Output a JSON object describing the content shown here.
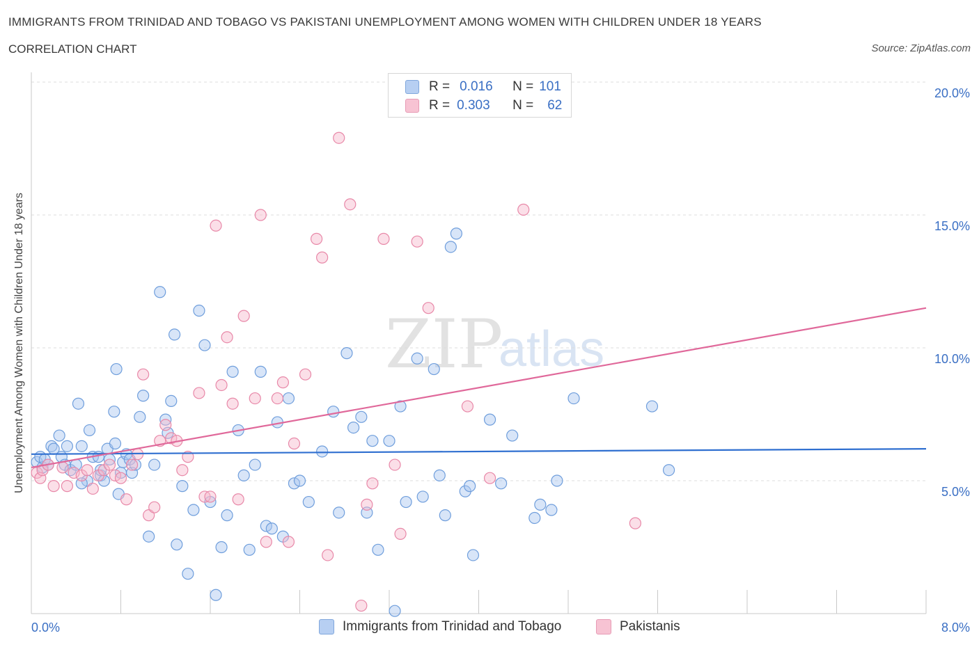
{
  "header": {
    "title": "IMMIGRANTS FROM TRINIDAD AND TOBAGO VS PAKISTANI UNEMPLOYMENT AMONG WOMEN WITH CHILDREN UNDER 18 YEARS",
    "subtitle": "CORRELATION CHART",
    "source": "Source: ZipAtlas.com"
  },
  "watermark": {
    "part1": "ZIP",
    "part2": "atlas"
  },
  "legend": {
    "rows": [
      {
        "r_label": "R =",
        "r_value": "0.016",
        "n_label": "N =",
        "n_value": "101",
        "color": "#b7cff2"
      },
      {
        "r_label": "R =",
        "r_value": "0.303",
        "n_label": "N =",
        "n_value": "62",
        "color": "#f7c3d3"
      }
    ]
  },
  "colors": {
    "blue_fill": "#a9c6ef",
    "blue_stroke": "#6f9edc",
    "blue_line": "#2f6fd0",
    "pink_fill": "#f6b8cb",
    "pink_stroke": "#e888a8",
    "pink_line": "#e0689a",
    "axis_text": "#3a6fc4",
    "grid": "#dcdcdc"
  },
  "chart_data": {
    "type": "scatter",
    "title": "IMMIGRANTS FROM TRINIDAD AND TOBAGO VS PAKISTANI UNEMPLOYMENT AMONG WOMEN WITH CHILDREN UNDER 18 YEARS",
    "ylabel": "Unemployment Among Women with Children Under 18 years",
    "xlim": [
      0,
      8
    ],
    "ylim": [
      0,
      20
    ],
    "x_tick_labels": [
      "0.0%",
      "8.0%"
    ],
    "y_ticks": [
      5,
      10,
      15,
      20
    ],
    "y_tick_labels": [
      "5.0%",
      "10.0%",
      "15.0%",
      "20.0%"
    ],
    "grid": true,
    "series": [
      {
        "name": "Immigrants from Trinidad and Tobago",
        "trend": {
          "x": [
            0,
            8
          ],
          "y": [
            6.0,
            6.2
          ]
        },
        "points": [
          [
            0.05,
            5.7
          ],
          [
            0.08,
            5.9
          ],
          [
            0.1,
            5.5
          ],
          [
            0.12,
            5.8
          ],
          [
            0.15,
            5.6
          ],
          [
            0.18,
            6.3
          ],
          [
            0.2,
            6.2
          ],
          [
            0.25,
            6.7
          ],
          [
            0.27,
            5.9
          ],
          [
            0.3,
            5.6
          ],
          [
            0.32,
            6.3
          ],
          [
            0.35,
            5.4
          ],
          [
            0.4,
            5.6
          ],
          [
            0.42,
            7.9
          ],
          [
            0.45,
            6.3
          ],
          [
            0.5,
            5.0
          ],
          [
            0.52,
            6.9
          ],
          [
            0.55,
            5.9
          ],
          [
            0.6,
            5.9
          ],
          [
            0.62,
            5.2
          ],
          [
            0.65,
            5.0
          ],
          [
            0.68,
            6.2
          ],
          [
            0.7,
            5.8
          ],
          [
            0.75,
            6.4
          ],
          [
            0.78,
            4.5
          ],
          [
            0.8,
            5.3
          ],
          [
            0.82,
            5.7
          ],
          [
            0.85,
            6.0
          ],
          [
            0.88,
            5.8
          ],
          [
            0.9,
            5.3
          ],
          [
            0.93,
            5.6
          ],
          [
            0.74,
            7.6
          ],
          [
            0.76,
            9.2
          ],
          [
            0.97,
            7.4
          ],
          [
            1.0,
            8.2
          ],
          [
            1.1,
            5.6
          ],
          [
            1.15,
            12.1
          ],
          [
            1.2,
            7.3
          ],
          [
            1.22,
            6.8
          ],
          [
            1.25,
            8.0
          ],
          [
            1.28,
            10.5
          ],
          [
            1.3,
            2.6
          ],
          [
            1.35,
            4.8
          ],
          [
            1.4,
            1.5
          ],
          [
            1.45,
            3.9
          ],
          [
            1.5,
            11.4
          ],
          [
            1.55,
            10.1
          ],
          [
            1.6,
            4.2
          ],
          [
            1.65,
            0.7
          ],
          [
            1.7,
            2.5
          ],
          [
            1.75,
            3.7
          ],
          [
            1.8,
            9.1
          ],
          [
            1.85,
            6.9
          ],
          [
            1.9,
            5.2
          ],
          [
            1.95,
            2.4
          ],
          [
            2.0,
            5.6
          ],
          [
            2.05,
            9.1
          ],
          [
            2.1,
            3.3
          ],
          [
            2.15,
            3.2
          ],
          [
            2.2,
            7.2
          ],
          [
            2.3,
            8.1
          ],
          [
            2.35,
            4.9
          ],
          [
            2.4,
            5.0
          ],
          [
            2.48,
            4.2
          ],
          [
            2.6,
            6.1
          ],
          [
            2.7,
            7.6
          ],
          [
            2.75,
            3.8
          ],
          [
            2.82,
            9.8
          ],
          [
            2.88,
            7.0
          ],
          [
            2.95,
            7.4
          ],
          [
            3.0,
            3.8
          ],
          [
            3.05,
            6.5
          ],
          [
            3.1,
            2.4
          ],
          [
            3.2,
            6.5
          ],
          [
            3.25,
            0.1
          ],
          [
            3.3,
            7.8
          ],
          [
            3.35,
            4.2
          ],
          [
            3.45,
            9.6
          ],
          [
            3.5,
            4.4
          ],
          [
            3.6,
            9.2
          ],
          [
            3.65,
            5.2
          ],
          [
            3.7,
            3.7
          ],
          [
            3.75,
            13.8
          ],
          [
            3.8,
            14.3
          ],
          [
            3.88,
            4.6
          ],
          [
            3.95,
            2.2
          ],
          [
            4.1,
            7.3
          ],
          [
            4.2,
            4.9
          ],
          [
            4.3,
            6.7
          ],
          [
            4.55,
            4.1
          ],
          [
            4.65,
            3.9
          ],
          [
            4.7,
            5.0
          ],
          [
            4.85,
            8.1
          ],
          [
            5.55,
            7.8
          ],
          [
            5.7,
            5.4
          ],
          [
            4.5,
            3.6
          ],
          [
            3.92,
            4.8
          ],
          [
            1.05,
            2.9
          ],
          [
            0.45,
            4.9
          ],
          [
            2.25,
            2.9
          ],
          [
            0.62,
            5.4
          ]
        ]
      },
      {
        "name": "Pakistanis",
        "trend": {
          "x": [
            0,
            8
          ],
          "y": [
            5.5,
            11.5
          ]
        },
        "points": [
          [
            0.05,
            5.3
          ],
          [
            0.08,
            5.1
          ],
          [
            0.1,
            5.4
          ],
          [
            0.15,
            5.6
          ],
          [
            0.2,
            4.8
          ],
          [
            0.28,
            5.5
          ],
          [
            0.32,
            4.8
          ],
          [
            0.38,
            5.3
          ],
          [
            0.45,
            5.2
          ],
          [
            0.5,
            5.4
          ],
          [
            0.55,
            4.7
          ],
          [
            0.6,
            5.2
          ],
          [
            0.65,
            5.4
          ],
          [
            0.7,
            5.6
          ],
          [
            0.75,
            5.2
          ],
          [
            0.8,
            5.1
          ],
          [
            0.85,
            4.3
          ],
          [
            0.9,
            5.6
          ],
          [
            0.95,
            6.0
          ],
          [
            1.0,
            9.0
          ],
          [
            1.05,
            3.7
          ],
          [
            1.1,
            4.0
          ],
          [
            1.15,
            6.5
          ],
          [
            1.2,
            7.1
          ],
          [
            1.25,
            6.6
          ],
          [
            1.3,
            6.5
          ],
          [
            1.35,
            5.4
          ],
          [
            1.4,
            5.9
          ],
          [
            1.5,
            8.3
          ],
          [
            1.55,
            4.4
          ],
          [
            1.6,
            4.4
          ],
          [
            1.65,
            14.6
          ],
          [
            1.7,
            8.6
          ],
          [
            1.75,
            10.4
          ],
          [
            1.8,
            7.9
          ],
          [
            1.85,
            4.3
          ],
          [
            1.9,
            11.2
          ],
          [
            2.0,
            8.1
          ],
          [
            2.05,
            15.0
          ],
          [
            2.1,
            2.7
          ],
          [
            2.2,
            8.1
          ],
          [
            2.25,
            8.7
          ],
          [
            2.3,
            2.7
          ],
          [
            2.35,
            6.4
          ],
          [
            2.45,
            9.0
          ],
          [
            2.55,
            14.1
          ],
          [
            2.6,
            13.4
          ],
          [
            2.65,
            2.2
          ],
          [
            2.75,
            17.9
          ],
          [
            2.85,
            15.4
          ],
          [
            2.95,
            0.3
          ],
          [
            3.0,
            4.1
          ],
          [
            3.05,
            4.9
          ],
          [
            3.15,
            14.1
          ],
          [
            3.25,
            5.6
          ],
          [
            3.3,
            3.0
          ],
          [
            3.45,
            14.0
          ],
          [
            3.55,
            11.5
          ],
          [
            3.9,
            7.8
          ],
          [
            4.1,
            5.1
          ],
          [
            4.4,
            15.2
          ],
          [
            5.4,
            3.4
          ]
        ]
      }
    ]
  },
  "bottom_legend": {
    "items": [
      {
        "label": "Immigrants from Trinidad and Tobago",
        "color": "#b7cff2"
      },
      {
        "label": "Pakistanis",
        "color": "#f7c3d3"
      }
    ]
  }
}
